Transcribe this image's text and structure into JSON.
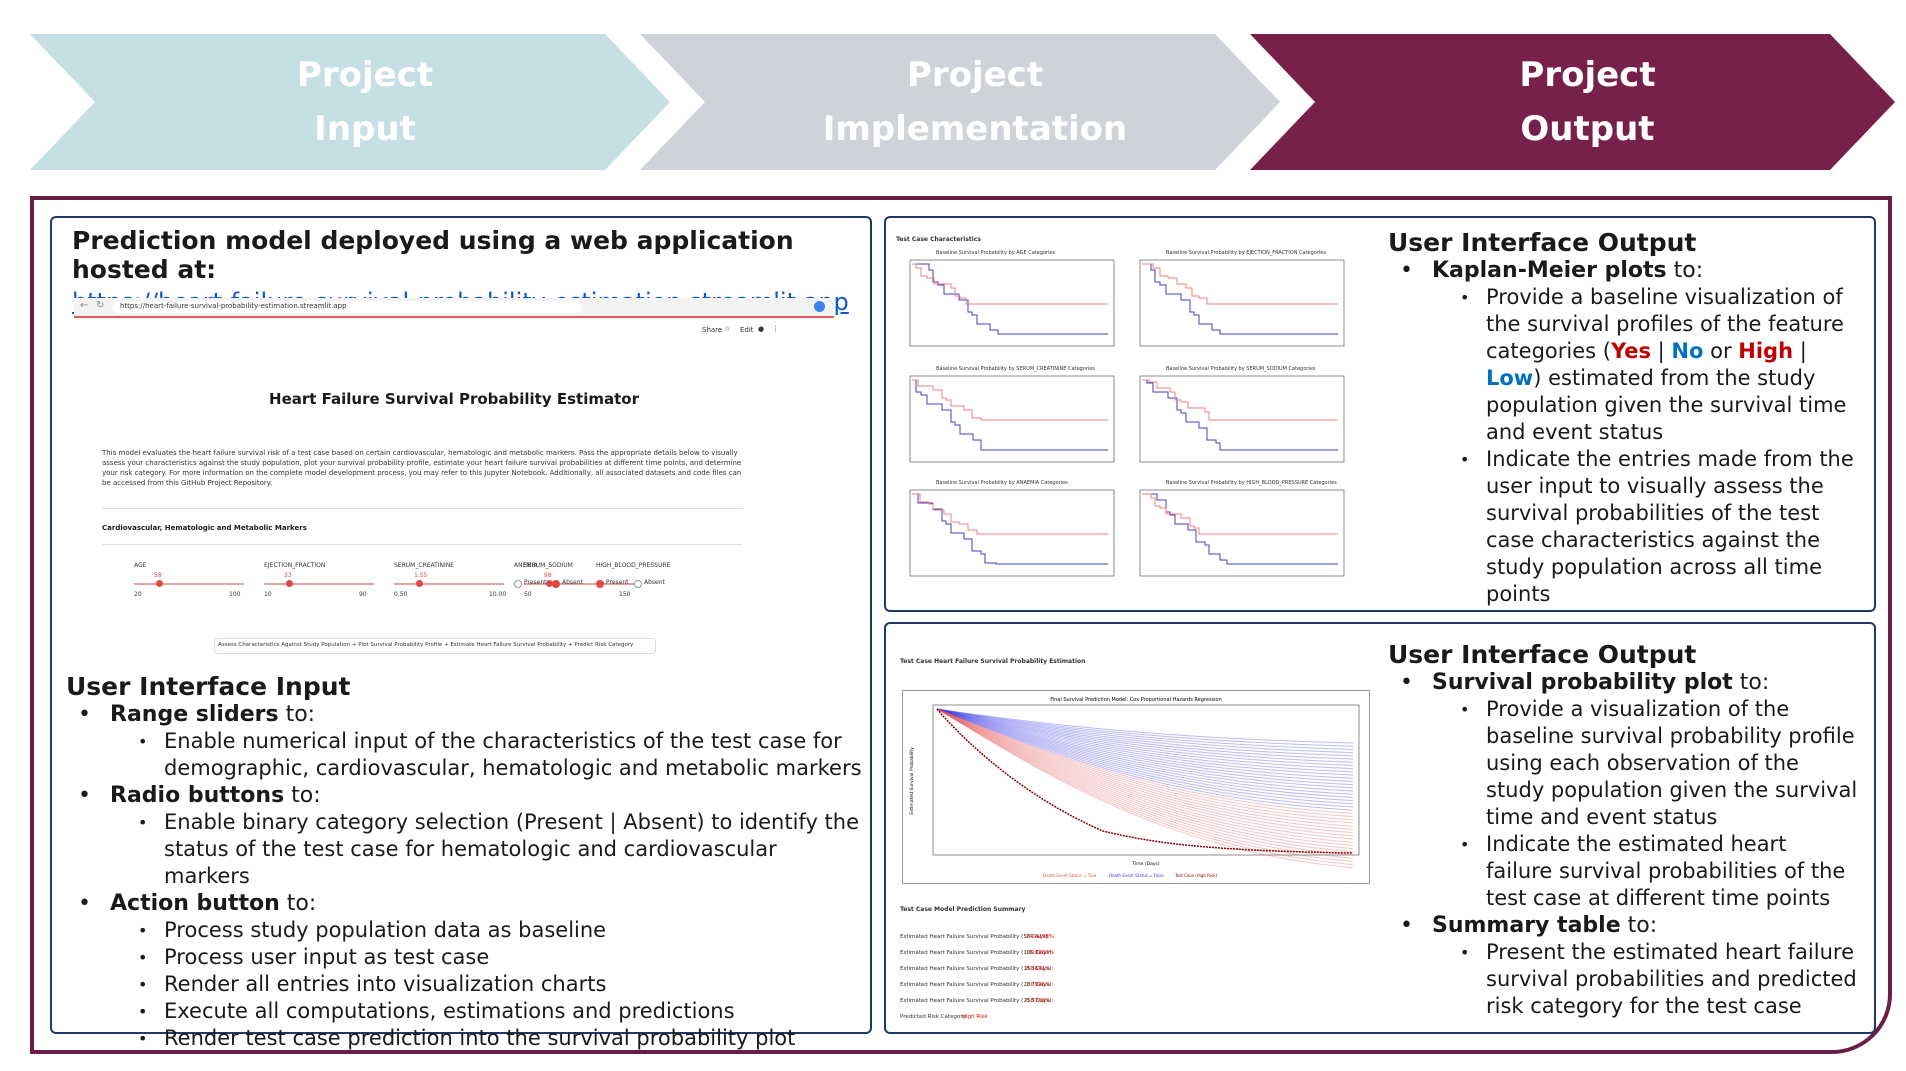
{
  "phases": [
    {
      "line1": "Project",
      "line2": "Input",
      "color": "#c5dfe4"
    },
    {
      "line1": "Project",
      "line2": "Implementation",
      "color": "#cfd3d9"
    },
    {
      "line1": "Project",
      "line2": "Output",
      "color": "#77214a"
    }
  ],
  "left": {
    "header": "Prediction model deployed using a web application hosted at:",
    "url": "https://heart-failure-survival-probability-estimation.streamlit.app",
    "app": {
      "address": "https://heart-failure-survival-probability-estimation.streamlit.app",
      "toolbar": {
        "share": "Share",
        "edit": "Edit"
      },
      "title": "Heart Failure Survival Probability Estimator",
      "description": "This model evaluates the heart failure survival risk of a test case based on certain cardiovascular, hematologic and metabolic markers. Pass the appropriate details below to visually assess your characteristics against the study population, plot your survival probability profile, estimate your heart failure survival probabilities at different time points, and determine your risk category. For more information on the complete model development process, you may refer to this Jupyter Notebook. Additionally, all associated datasets and code files can be accessed from this GitHub Project Repository.",
      "section": "Cardiovascular, Hematologic and Metabolic Markers",
      "sliders": [
        {
          "label": "AGE",
          "min": "20",
          "max": "100",
          "value": "58"
        },
        {
          "label": "EJECTION_FRACTION",
          "min": "10",
          "max": "90",
          "value": "33"
        },
        {
          "label": "SERUM_CREATININE",
          "min": "0.50",
          "max": "10.00",
          "value": "1.55"
        },
        {
          "label": "SERUM_SODIUM",
          "min": "50",
          "max": "150",
          "value": "98"
        }
      ],
      "radios": [
        {
          "label": "ANEMIA",
          "options": [
            "Present",
            "Absent"
          ],
          "selected": "Absent"
        },
        {
          "label": "HIGH_BLOOD_PRESSURE",
          "options": [
            "Present",
            "Absent"
          ],
          "selected": "Present"
        }
      ],
      "action_button": "Assess Characteristics Against Study Population + Plot Survival Probability Profile + Estimate Heart Failure Survival Probability + Predict Risk Category"
    },
    "input_title": "User Interface Input",
    "items": [
      {
        "head": "Range sliders",
        "suffix": " to:",
        "subs": [
          "Enable numerical input of the characteristics of the test case for demographic, cardiovascular, hematologic and metabolic markers"
        ]
      },
      {
        "head": "Radio buttons",
        "suffix": " to:",
        "subs": [
          "Enable binary category selection (Present | Absent) to identify the status of the test case for hematologic and cardiovascular markers"
        ]
      },
      {
        "head": "Action button",
        "suffix": " to:",
        "subs": [
          "Process study population data as baseline",
          "Process user input as test case",
          "Render all entries into visualization charts",
          "Execute all computations, estimations and predictions",
          "Render test case prediction into the survival probability plot"
        ]
      }
    ]
  },
  "top_right": {
    "caption": "Test Case Characteristics",
    "plots": [
      "Baseline Survival Probability by AGE Categories",
      "Baseline Survival Probability by EJECTION_FRACTION Categories",
      "Baseline Survival Probability by SERUM_CREATININE Categories",
      "Baseline Survival Probability by SERUM_SODIUM Categories",
      "Baseline Survival Probability by ANAEMIA Categories",
      "Baseline Survival Probability by HIGH_BLOOD_PRESSURE Categories"
    ],
    "title": "User Interface Output",
    "heading_bold": "Kaplan-Meier plots",
    "heading_rest": " to:",
    "sub1_pre": "Provide a baseline visualization of the survival profiles of the feature categories (",
    "yes": "Yes",
    "sep1": " | ",
    "no": "No",
    "or": " or ",
    "high": "High",
    "sep2": " | ",
    "low": "Low",
    "sub1_post": ") estimated from the study population given the survival time and event status",
    "sub2": "Indicate the entries made from the user input to visually assess the survival probabilities of the test case characteristics against the study population across all time points",
    "colors": {
      "yes": "#c00000",
      "no": "#0070c0"
    }
  },
  "bottom_right": {
    "caption": "Test Case Heart Failure Survival Probability Estimation",
    "plot_title": "Final Survival Prediction Model: Cox Proportional Hazards Regression",
    "xlabel": "Time (Days)",
    "ylabel": "Estimated Survival Probability",
    "legend": [
      "Death Event Status = True",
      "Death Event Status = False",
      "Test Case (High Risk)"
    ],
    "summary_title": "Test Case Model Prediction Summary",
    "summary": [
      {
        "label": "Estimated Heart Failure Survival Probability (50 Days):",
        "value": "24.4298%"
      },
      {
        "label": "Estimated Heart Failure Survival Probability (100 Days):",
        "value": "16.8200%"
      },
      {
        "label": "Estimated Heart Failure Survival Probability (150 Days):",
        "value": "8.3671%"
      },
      {
        "label": "Estimated Heart Failure Survival Probability (200 Days):",
        "value": "2.7026%"
      },
      {
        "label": "Estimated Heart Failure Survival Probability (250 Days):",
        "value": "0.5709%"
      }
    ],
    "risk_label": "Predicted Risk Category:",
    "risk_value": "High Risk",
    "title": "User Interface Output",
    "item1_bold": "Survival probability plot",
    "item1_rest": " to:",
    "item1_subs": [
      "Provide a visualization of the baseline survival probability profile using each observation of the study population given the survival time and event status",
      "Indicate the estimated heart failure survival probabilities of the test case at different time points"
    ],
    "item2_bold": "Summary table",
    "item2_rest": " to:",
    "item2_subs": [
      "Present the estimated heart failure survival probabilities and predicted risk category for the test case"
    ]
  }
}
